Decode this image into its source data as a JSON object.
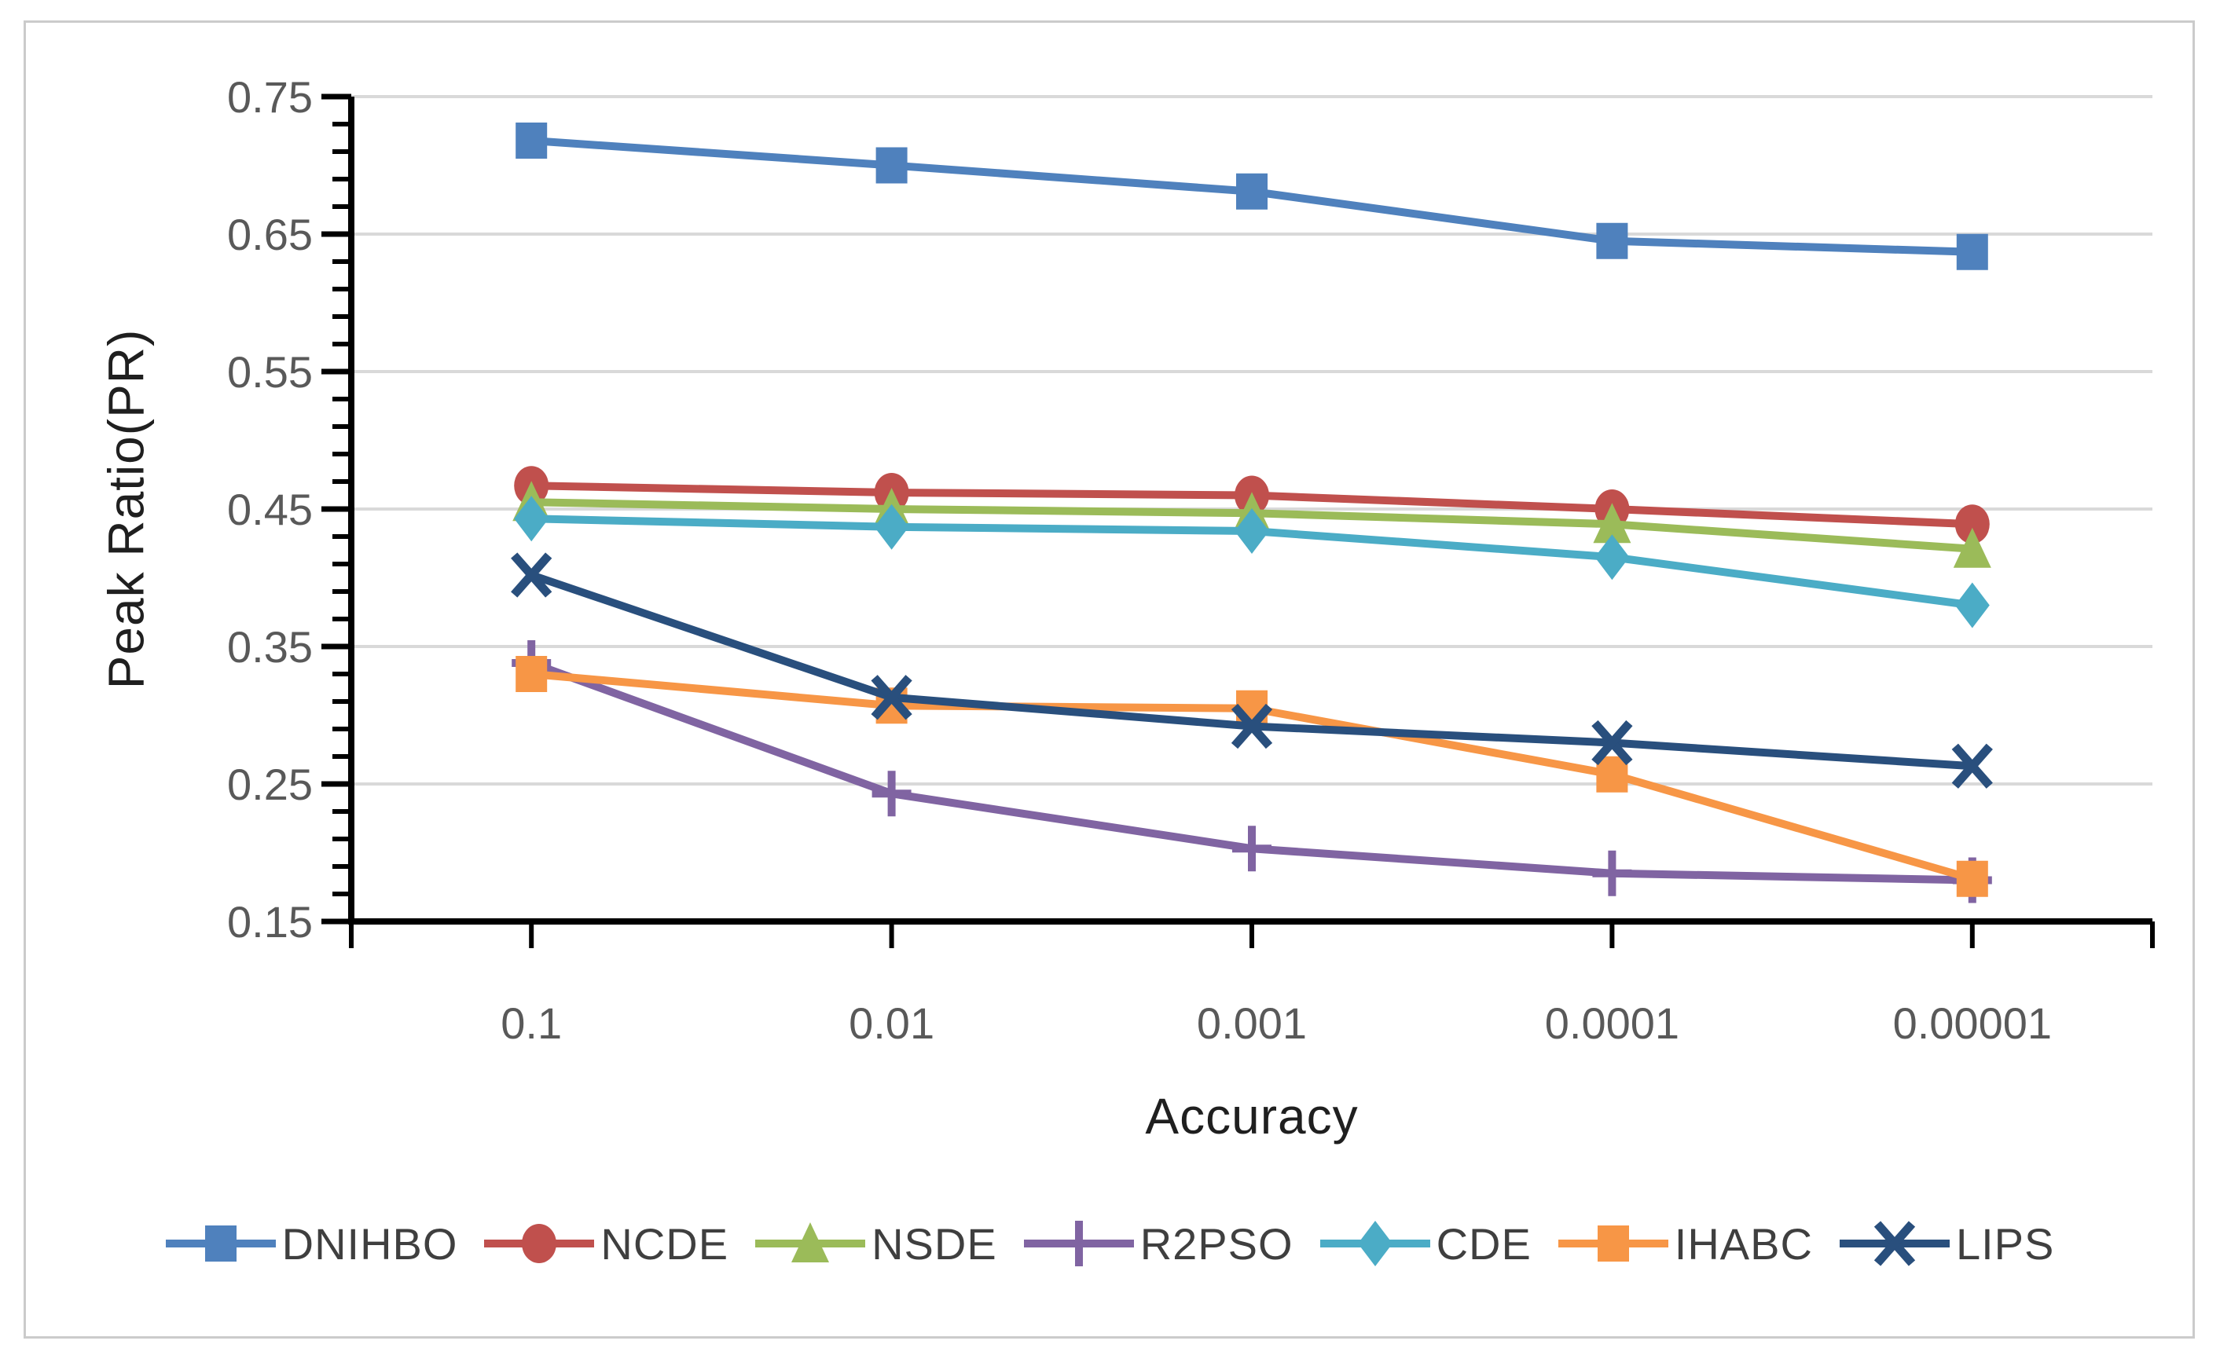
{
  "figure": {
    "background": "#ffffff",
    "border_color": "#cbcbcb"
  },
  "style": {
    "tick_label_color": "#595959",
    "axis_title_color": "#1f1f1f",
    "legend_label_color": "#3f3f3f",
    "gridline_color": "#d9d9d9",
    "axis_line_color": "#000000"
  },
  "chart_data": {
    "type": "line",
    "title": "",
    "xlabel": "Accuracy",
    "ylabel": "Peak Ratio(PR)",
    "categories": [
      "0.1",
      "0.01",
      "0.001",
      "0.0001",
      "0.00001"
    ],
    "y_axis": {
      "min": 0.15,
      "max": 0.75,
      "major_step": 0.1,
      "minor_step": 0.02,
      "tick_labels": [
        "0.75",
        "0.65",
        "0.55",
        "0.45",
        "0.35",
        "0.25",
        "0.15"
      ]
    },
    "grid": "horizontal-major",
    "legend_position": "bottom",
    "series": [
      {
        "name": "DNIHBO",
        "color": "#4F81BD",
        "marker": "square",
        "values": [
          0.718,
          0.7,
          0.681,
          0.645,
          0.637
        ]
      },
      {
        "name": "NCDE",
        "color": "#C0504D",
        "marker": "circle",
        "values": [
          0.467,
          0.462,
          0.46,
          0.45,
          0.439
        ]
      },
      {
        "name": "NSDE",
        "color": "#9BBB59",
        "marker": "triangle",
        "values": [
          0.455,
          0.45,
          0.447,
          0.439,
          0.421
        ]
      },
      {
        "name": "R2PSO",
        "color": "#8064A2",
        "marker": "plus",
        "values": [
          0.338,
          0.243,
          0.203,
          0.185,
          0.18
        ]
      },
      {
        "name": "CDE",
        "color": "#4BACC6",
        "marker": "diamond",
        "values": [
          0.443,
          0.437,
          0.434,
          0.415,
          0.38
        ]
      },
      {
        "name": "IHABC",
        "color": "#F79646",
        "marker": "square",
        "values": [
          0.33,
          0.307,
          0.305,
          0.257,
          0.181
        ]
      },
      {
        "name": "LIPS",
        "color": "#294F7D",
        "marker": "x",
        "values": [
          0.402,
          0.313,
          0.292,
          0.28,
          0.263
        ]
      }
    ]
  }
}
